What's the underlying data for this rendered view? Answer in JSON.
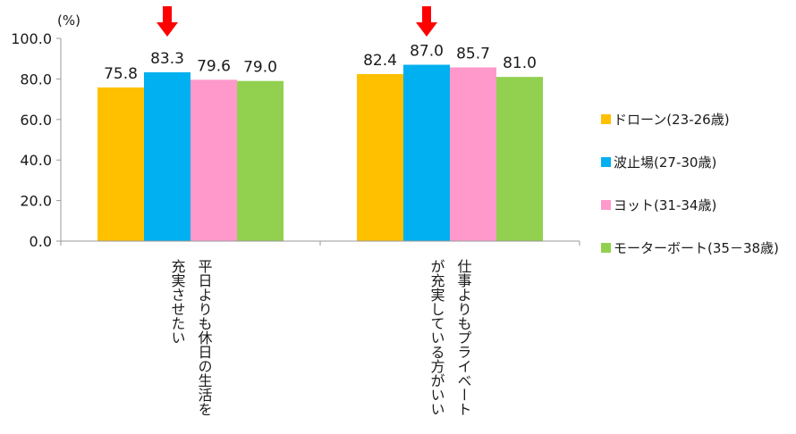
{
  "chart_data": {
    "type": "bar",
    "y_unit_label": "(%)",
    "ylim": [
      0,
      100
    ],
    "yticks": [
      "0.0",
      "20.0",
      "40.0",
      "60.0",
      "80.0",
      "100.0"
    ],
    "ytick_values": [
      0,
      20,
      40,
      60,
      80,
      100
    ],
    "grid": false,
    "legend_position": "right",
    "categories": [
      {
        "lines": [
          "平日よりも休日の生活を",
          "充実させたい"
        ]
      },
      {
        "lines": [
          "仕事よりもプライベート",
          "が充実している方がいい"
        ]
      }
    ],
    "series": [
      {
        "name": "ドローン(23-26歳)",
        "color": "#FFC000",
        "values": [
          75.8,
          82.4
        ],
        "labels": [
          "75.8",
          "82.4"
        ]
      },
      {
        "name": "波止場(27-30歳)",
        "color": "#00B0F0",
        "values": [
          83.3,
          87.0
        ],
        "labels": [
          "83.3",
          "87.0"
        ]
      },
      {
        "name": "ヨット(31-34歳)",
        "color": "#FF99CC",
        "values": [
          79.6,
          85.7
        ],
        "labels": [
          "79.6",
          "85.7"
        ]
      },
      {
        "name": "モーターボート(35－38歳)",
        "color": "#92D050",
        "values": [
          79.0,
          81.0
        ],
        "labels": [
          "79.0",
          "81.0"
        ]
      }
    ],
    "highlight": {
      "series_index": 1,
      "marker": "down-arrow",
      "color": "#FF0000"
    }
  }
}
